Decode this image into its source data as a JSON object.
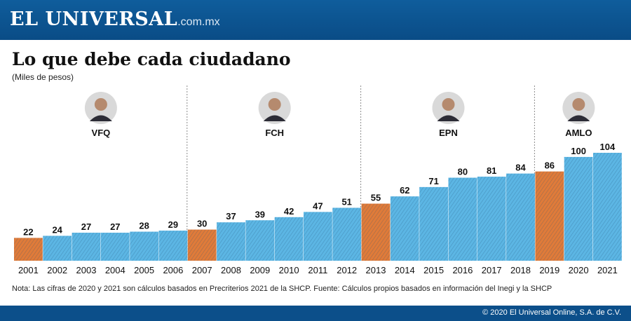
{
  "header": {
    "brand": "EL UNIVERSAL",
    "domain": ".com.mx"
  },
  "chart_data": {
    "type": "bar",
    "title": "Lo que debe cada ciudadano",
    "ylabel": "(Miles de pesos)",
    "xlabel": "",
    "categories": [
      "2001",
      "2002",
      "2003",
      "2004",
      "2005",
      "2006",
      "2007",
      "2008",
      "2009",
      "2010",
      "2011",
      "2012",
      "2013",
      "2014",
      "2015",
      "2016",
      "2017",
      "2018",
      "2019",
      "2020",
      "2021"
    ],
    "values": [
      22,
      24,
      27,
      27,
      28,
      29,
      30,
      37,
      39,
      42,
      47,
      51,
      55,
      62,
      71,
      80,
      81,
      84,
      86,
      100,
      104
    ],
    "ylim": [
      0,
      104
    ],
    "highlighted": [
      "2001",
      "2007",
      "2013",
      "2019"
    ],
    "colors": {
      "highlight": "#e07b39",
      "default": "#5cb6e4",
      "texture": "#1e4f78"
    },
    "administrations": [
      {
        "name": "VFQ",
        "start": "2001",
        "end": "2006"
      },
      {
        "name": "FCH",
        "start": "2007",
        "end": "2012"
      },
      {
        "name": "EPN",
        "start": "2013",
        "end": "2018"
      },
      {
        "name": "AMLO",
        "start": "2019",
        "end": "2021"
      }
    ]
  },
  "note": "Nota: Las cifras de 2020 y 2021 son cálculos basados en Precriterios 2021 de la SHCP. Fuente: Cálculos propios basados en información del Inegi y la SHCP",
  "footer": {
    "copyright": "© 2020 El Universal Online, S.A. de C.V."
  }
}
